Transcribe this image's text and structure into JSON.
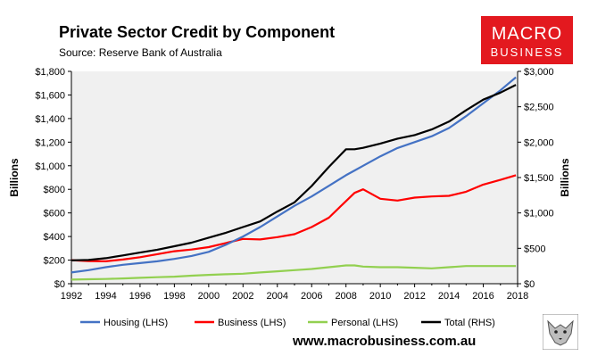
{
  "header": {
    "title": "Private Sector Credit by Component",
    "subtitle": "Source: Reserve Bank of Australia"
  },
  "logo": {
    "line1": "MACRO",
    "line2": "BUSINESS",
    "color": "#e3191f"
  },
  "footer": {
    "url": "www.macrobusiness.com.au"
  },
  "chart_data": {
    "type": "line",
    "title": "Private Sector Credit by Component",
    "ylabel_left": "Billions",
    "ylabel_right": "Billions",
    "xlim": [
      1992,
      2018
    ],
    "ylim_left": [
      0,
      1800
    ],
    "ylim_right": [
      0,
      3000
    ],
    "x_ticks": [
      1992,
      1994,
      1996,
      1998,
      2000,
      2002,
      2004,
      2006,
      2008,
      2010,
      2012,
      2014,
      2016,
      2018
    ],
    "x_tick_labels": [
      "1992",
      "1994",
      "1996",
      "1998",
      "2000",
      "2002",
      "2004",
      "2006",
      "2008",
      "2010",
      "2012",
      "2014",
      "2016",
      "2018"
    ],
    "y_ticks_left": [
      0,
      200,
      400,
      600,
      800,
      1000,
      1200,
      1400,
      1600,
      1800
    ],
    "y_tick_labels_left": [
      "$0",
      "$200",
      "$400",
      "$600",
      "$800",
      "$1,000",
      "$1,200",
      "$1,400",
      "$1,600",
      "$1,800"
    ],
    "y_ticks_right": [
      0,
      500,
      1000,
      1500,
      2000,
      2500,
      3000
    ],
    "y_tick_labels_right": [
      "$0",
      "$500",
      "$1,000",
      "$1,500",
      "$2,000",
      "$2,500",
      "$3,000"
    ],
    "grid": false,
    "plot_background": "#f0f0f0",
    "legend_position": "bottom",
    "x": [
      1992,
      1993,
      1994,
      1995,
      1996,
      1997,
      1998,
      1999,
      2000,
      2001,
      2002,
      2003,
      2004,
      2005,
      2006,
      2007,
      2008,
      2008.5,
      2009,
      2010,
      2011,
      2012,
      2013,
      2014,
      2015,
      2016,
      2017,
      2017.9
    ],
    "series": [
      {
        "name": "Housing (LHS)",
        "axis": "left",
        "color": "#4472c4",
        "values": [
          95,
          115,
          140,
          160,
          175,
          190,
          210,
          235,
          270,
          330,
          400,
          480,
          570,
          660,
          740,
          830,
          920,
          960,
          1000,
          1080,
          1150,
          1200,
          1250,
          1320,
          1420,
          1530,
          1640,
          1750
        ]
      },
      {
        "name": "Business (LHS)",
        "axis": "left",
        "color": "#ff0000",
        "values": [
          200,
          192,
          190,
          205,
          225,
          250,
          275,
          290,
          310,
          345,
          380,
          375,
          395,
          420,
          480,
          560,
          700,
          770,
          800,
          720,
          705,
          730,
          740,
          745,
          780,
          840,
          880,
          920
        ]
      },
      {
        "name": "Personal (LHS)",
        "axis": "left",
        "color": "#92d050",
        "values": [
          35,
          38,
          40,
          45,
          50,
          55,
          60,
          68,
          75,
          80,
          85,
          95,
          105,
          115,
          125,
          140,
          155,
          155,
          145,
          140,
          140,
          135,
          130,
          140,
          150,
          150,
          150,
          150
        ]
      },
      {
        "name": "Total (RHS)",
        "axis": "right",
        "color": "#000000",
        "values": [
          330,
          335,
          360,
          400,
          440,
          480,
          530,
          580,
          650,
          720,
          800,
          880,
          1020,
          1150,
          1380,
          1650,
          1900,
          1900,
          1920,
          1980,
          2050,
          2100,
          2180,
          2290,
          2450,
          2600,
          2700,
          2810
        ]
      }
    ]
  }
}
